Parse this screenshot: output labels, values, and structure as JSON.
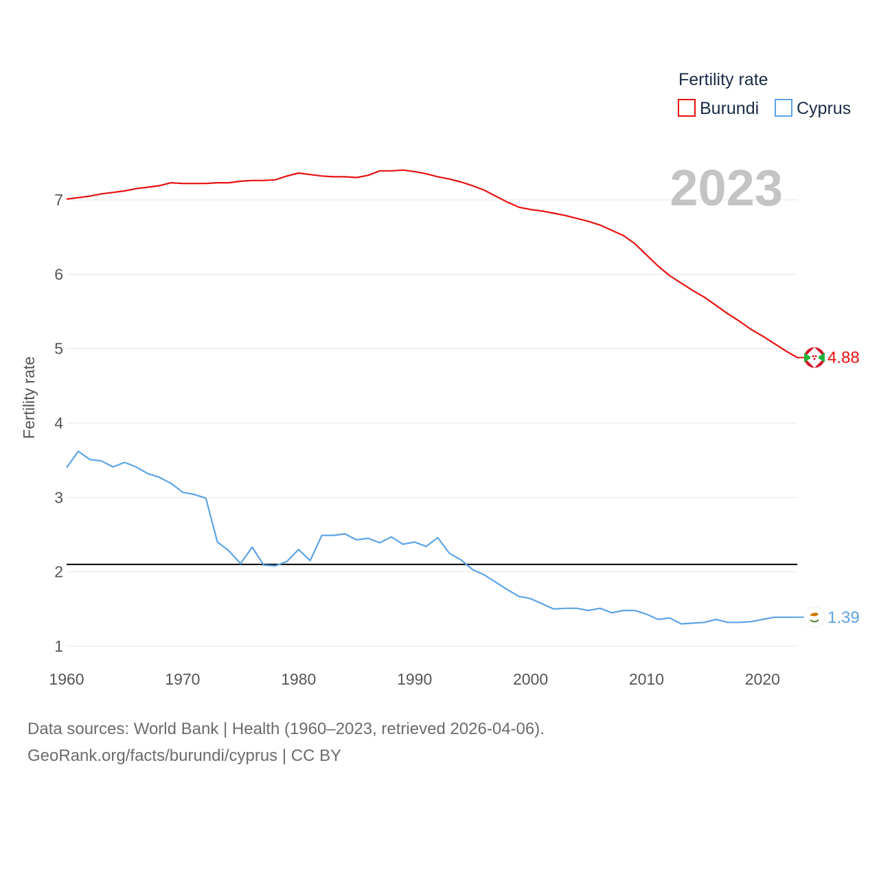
{
  "chart_data": {
    "type": "line",
    "title": "Fertility rate",
    "ylabel": "Fertility rate",
    "xlabel": "",
    "year_label": "2023",
    "xlim": [
      1960,
      2023
    ],
    "ylim": [
      0.9,
      7.9
    ],
    "x_ticks": [
      1960,
      1970,
      1980,
      1990,
      2000,
      2010,
      2020
    ],
    "y_ticks": [
      1,
      2,
      3,
      4,
      5,
      6,
      7
    ],
    "reference_line": {
      "y": 2.1,
      "color": "#000000"
    },
    "x": [
      1960,
      1961,
      1962,
      1963,
      1964,
      1965,
      1966,
      1967,
      1968,
      1969,
      1970,
      1971,
      1972,
      1973,
      1974,
      1975,
      1976,
      1977,
      1978,
      1979,
      1980,
      1981,
      1982,
      1983,
      1984,
      1985,
      1986,
      1987,
      1988,
      1989,
      1990,
      1991,
      1992,
      1993,
      1994,
      1995,
      1996,
      1997,
      1998,
      1999,
      2000,
      2001,
      2002,
      2003,
      2004,
      2005,
      2006,
      2007,
      2008,
      2009,
      2010,
      2011,
      2012,
      2013,
      2014,
      2015,
      2016,
      2017,
      2018,
      2019,
      2020,
      2021,
      2022,
      2023
    ],
    "series": [
      {
        "name": "Burundi",
        "color": "#e8100f",
        "end_label": "4.88",
        "values": [
          7.01,
          7.03,
          7.05,
          7.08,
          7.1,
          7.12,
          7.15,
          7.17,
          7.19,
          7.23,
          7.22,
          7.22,
          7.22,
          7.23,
          7.23,
          7.25,
          7.26,
          7.26,
          7.27,
          7.32,
          7.36,
          7.34,
          7.32,
          7.31,
          7.31,
          7.3,
          7.33,
          7.39,
          7.39,
          7.4,
          7.38,
          7.35,
          7.31,
          7.28,
          7.24,
          7.19,
          7.13,
          7.05,
          6.97,
          6.9,
          6.87,
          6.85,
          6.82,
          6.79,
          6.75,
          6.71,
          6.66,
          6.59,
          6.52,
          6.41,
          6.26,
          6.11,
          5.98,
          5.88,
          5.78,
          5.69,
          5.58,
          5.47,
          5.37,
          5.26,
          5.17,
          5.07,
          4.97,
          4.88
        ]
      },
      {
        "name": "Cyprus",
        "color": "#5ba3e6",
        "end_label": "1.39",
        "values": [
          3.4,
          3.62,
          3.51,
          3.49,
          3.41,
          3.47,
          3.41,
          3.32,
          3.27,
          3.19,
          3.07,
          3.04,
          2.99,
          2.4,
          2.28,
          2.11,
          2.33,
          2.09,
          2.08,
          2.14,
          2.3,
          2.15,
          2.49,
          2.49,
          2.51,
          2.43,
          2.45,
          2.39,
          2.47,
          2.37,
          2.4,
          2.34,
          2.46,
          2.25,
          2.16,
          2.03,
          1.96,
          1.86,
          1.76,
          1.67,
          1.64,
          1.57,
          1.5,
          1.51,
          1.51,
          1.48,
          1.51,
          1.45,
          1.48,
          1.48,
          1.43,
          1.36,
          1.38,
          1.3,
          1.31,
          1.32,
          1.36,
          1.32,
          1.32,
          1.33,
          1.36,
          1.39,
          1.39,
          1.39
        ]
      }
    ]
  },
  "source": {
    "line1": "Data sources: World Bank | Health (1960–2023, retrieved 2026-04-06).",
    "line2": "GeoRank.org/facts/burundi/cyprus | CC BY"
  }
}
